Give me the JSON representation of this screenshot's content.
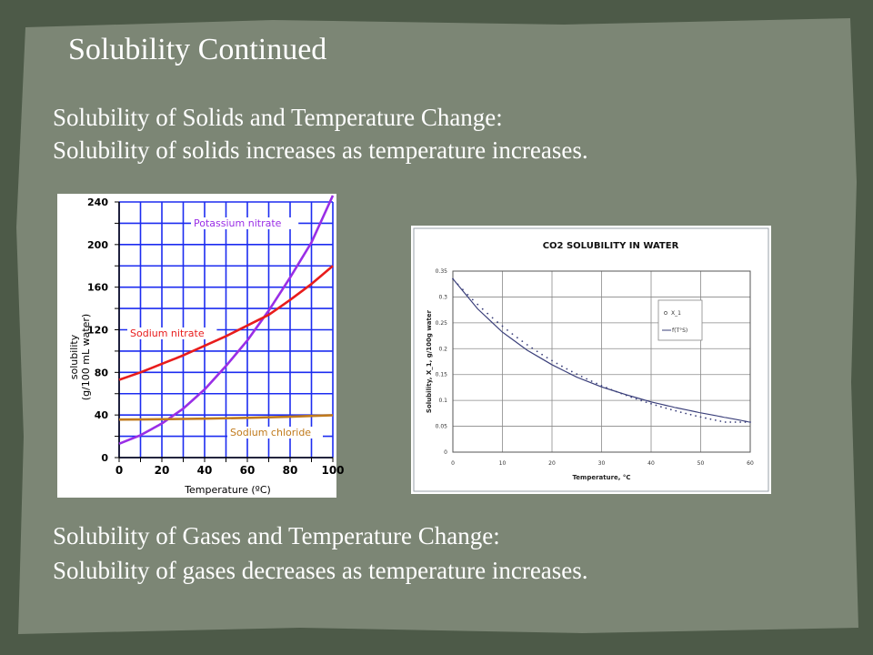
{
  "slide": {
    "title": "Solubility Continued",
    "lines": [
      "Solubility of Solids and Temperature Change:",
      "Solubility of solids increases as temperature increases.",
      "Solubility of Gases and Temperature Change:",
      "Solubility of gases decreases as temperature increases."
    ]
  },
  "colors": {
    "slide_background": "#7c8675",
    "slide_border": "#4d5a48",
    "text": "#ffffff",
    "grid_blue": "#1c2cf0",
    "potassium_nitrate": "#9a2ee6",
    "sodium_nitrate": "#e81c1c",
    "sodium_chloride": "#c07a1c",
    "co2_curve": "#3a3f7a"
  },
  "chart_data": [
    {
      "type": "line",
      "title": "",
      "xlabel": "Temperature (ºC)",
      "ylabel": "solubility (g/100 mL water)",
      "xlim": [
        0,
        100
      ],
      "ylim": [
        0,
        240
      ],
      "x_ticks": [
        "0",
        "20",
        "40",
        "60",
        "80",
        "100"
      ],
      "y_ticks": [
        "0",
        "40",
        "80",
        "120",
        "160",
        "200",
        "240"
      ],
      "grid": true,
      "series": [
        {
          "name": "Potassium nitrate",
          "color": "#9a2ee6",
          "x": [
            0,
            10,
            20,
            30,
            40,
            50,
            60,
            70,
            80,
            90,
            100
          ],
          "y": [
            13,
            21,
            32,
            46,
            64,
            86,
            110,
            138,
            169,
            202,
            246
          ]
        },
        {
          "name": "Sodium nitrate",
          "color": "#e81c1c",
          "x": [
            0,
            10,
            20,
            30,
            40,
            50,
            60,
            70,
            80,
            90,
            100
          ],
          "y": [
            73,
            80,
            88,
            96,
            105,
            114,
            124,
            134,
            148,
            163,
            180
          ]
        },
        {
          "name": "Sodium chloride",
          "color": "#c07a1c",
          "x": [
            0,
            20,
            40,
            60,
            80,
            100
          ],
          "y": [
            35.7,
            36,
            36.6,
            37.3,
            38.4,
            39.8
          ]
        }
      ]
    },
    {
      "type": "line",
      "title": "CO2 SOLUBILITY IN WATER",
      "xlabel": "Temperature, °C",
      "ylabel": "Solubility, X_1, g/100g water",
      "xlim": [
        0,
        60
      ],
      "ylim": [
        0,
        0.35
      ],
      "x_ticks": [
        "0",
        "10",
        "20",
        "30",
        "40",
        "50",
        "60"
      ],
      "y_ticks": [
        "0",
        "0.05",
        "0.1",
        "0.15",
        "0.2",
        "0.25",
        "0.3",
        "0.35"
      ],
      "grid": true,
      "legend": [
        "X_1",
        "f(T°S)"
      ],
      "legend_position": "right",
      "series": [
        {
          "name": "X_1",
          "x": [
            0,
            5,
            10,
            15,
            20,
            25,
            30,
            35,
            40,
            45,
            50,
            55,
            60
          ],
          "y": [
            0.335,
            0.277,
            0.232,
            0.197,
            0.169,
            0.145,
            0.126,
            0.111,
            0.097,
            0.086,
            0.076,
            0.067,
            0.058
          ]
        }
      ]
    }
  ]
}
